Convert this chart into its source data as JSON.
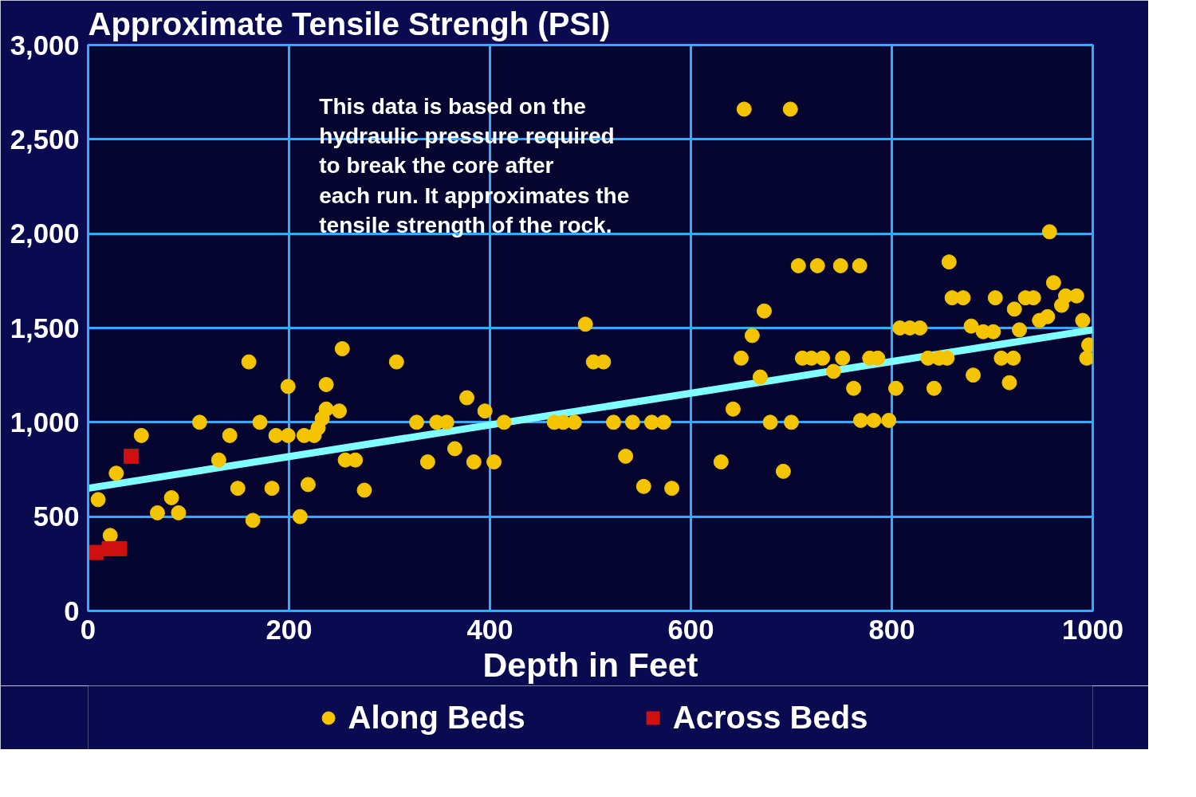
{
  "chart_data": {
    "type": "scatter",
    "title": "Approximate Tensile Strengh (PSI)",
    "xlabel": "Depth in Feet",
    "xlim": [
      0,
      1000
    ],
    "xticks": [
      0,
      200,
      400,
      600,
      800,
      1000
    ],
    "ylim": [
      0,
      3000
    ],
    "yticks": [
      {
        "value": 0,
        "label": "0"
      },
      {
        "value": 500,
        "label": "500"
      },
      {
        "value": 1000,
        "label": "1,000"
      },
      {
        "value": 1500,
        "label": "1,500"
      },
      {
        "value": 2000,
        "label": "2,000"
      },
      {
        "value": 2500,
        "label": "2,500"
      },
      {
        "value": 3000,
        "label": "3,000"
      }
    ],
    "grid": true,
    "legend": "bottom",
    "annotations": [
      "This data is based on the\nhydraulic pressure required\nto break the core after\neach run. It approximates the\ntensile strength of the rock."
    ],
    "series": [
      {
        "name": "Along Beds",
        "marker": "circle",
        "color": "#f5c400",
        "x": [
          10,
          22,
          28,
          53,
          69,
          83,
          90,
          111,
          130,
          141,
          149,
          160,
          164,
          171,
          183,
          187,
          199,
          199,
          211,
          215,
          219,
          225,
          229,
          233,
          237,
          237,
          250,
          253,
          256,
          266,
          275,
          307,
          327,
          338,
          347,
          357,
          365,
          377,
          384,
          395,
          404,
          414,
          464,
          473,
          484,
          495,
          503,
          513,
          523,
          535,
          542,
          553,
          561,
          573,
          581,
          630,
          642,
          650,
          653,
          661,
          669,
          673,
          679,
          692,
          699,
          700,
          707,
          711,
          720,
          726,
          731,
          742,
          749,
          751,
          762,
          768,
          769,
          778,
          782,
          786,
          797,
          804,
          808,
          818,
          828,
          836,
          842,
          847,
          855,
          857,
          860,
          871,
          879,
          881,
          891,
          901,
          903,
          909,
          917,
          921,
          922,
          927,
          933,
          941,
          947,
          955,
          957,
          961,
          969,
          973,
          984,
          990,
          994,
          996
        ],
        "values": [
          590,
          400,
          730,
          930,
          520,
          600,
          520,
          1000,
          800,
          930,
          650,
          1320,
          480,
          1000,
          650,
          930,
          1190,
          930,
          500,
          930,
          670,
          930,
          970,
          1020,
          1200,
          1070,
          1060,
          1390,
          800,
          800,
          640,
          1320,
          1000,
          790,
          1000,
          1000,
          860,
          1130,
          790,
          1060,
          790,
          1000,
          1000,
          1000,
          1000,
          1520,
          1320,
          1320,
          1000,
          820,
          1000,
          660,
          1000,
          1000,
          650,
          790,
          1070,
          1340,
          2660,
          1460,
          1240,
          1590,
          1000,
          740,
          2660,
          1000,
          1830,
          1340,
          1340,
          1830,
          1340,
          1270,
          1830,
          1340,
          1180,
          1830,
          1010,
          1340,
          1010,
          1340,
          1010,
          1180,
          1500,
          1500,
          1500,
          1340,
          1180,
          1340,
          1340,
          1850,
          1660,
          1660,
          1510,
          1250,
          1480,
          1480,
          1660,
          1340,
          1210,
          1340,
          1600,
          1490,
          1660,
          1660,
          1540,
          1560,
          2010,
          1740,
          1620,
          1670,
          1670,
          1540,
          1340,
          1410
        ]
      },
      {
        "name": "Across Beds",
        "marker": "square",
        "color": "#d01010",
        "x": [
          8,
          21,
          31,
          43
        ],
        "values": [
          310,
          330,
          330,
          820
        ]
      },
      {
        "type": "line",
        "color": "#80ffff",
        "x": [
          0,
          1000
        ],
        "values": [
          650,
          1490
        ]
      }
    ]
  }
}
